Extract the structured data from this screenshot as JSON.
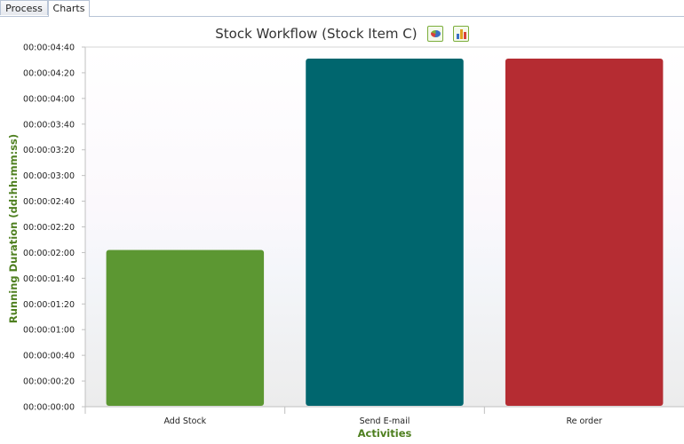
{
  "tabs": [
    {
      "label": "Process",
      "active": false
    },
    {
      "label": "Charts",
      "active": true
    }
  ],
  "header": {
    "title": "Stock Workflow (Stock Item C)",
    "buttons": [
      {
        "icon": "pie-chart-icon"
      },
      {
        "icon": "bar-chart-icon"
      }
    ]
  },
  "chart_data": {
    "type": "bar",
    "title": "Stock Workflow (Stock Item C)",
    "xlabel": "Activities",
    "ylabel": "Running Duration (dd:hh:mm:ss)",
    "categories": [
      "Add Stock",
      "Send E-mail",
      "Re order"
    ],
    "values": [
      122,
      271,
      271
    ],
    "colors": [
      "#5c9732",
      "#00666e",
      "#b52c32"
    ],
    "ylim": [
      0,
      280
    ],
    "yticks": [
      0,
      20,
      40,
      60,
      80,
      100,
      120,
      140,
      160,
      180,
      200,
      220,
      240,
      260,
      280
    ],
    "ytick_labels": [
      "00:00:00:00",
      "00:00:00:20",
      "00:00:00:40",
      "00:00:01:00",
      "00:00:01:20",
      "00:00:01:40",
      "00:00:02:00",
      "00:00:02:20",
      "00:00:02:40",
      "00:00:03:00",
      "00:00:03:20",
      "00:00:03:40",
      "00:00:04:00",
      "00:00:04:20",
      "00:00:04:40"
    ],
    "label_color": "#4e7f1f",
    "grid": false,
    "legend": "none"
  }
}
